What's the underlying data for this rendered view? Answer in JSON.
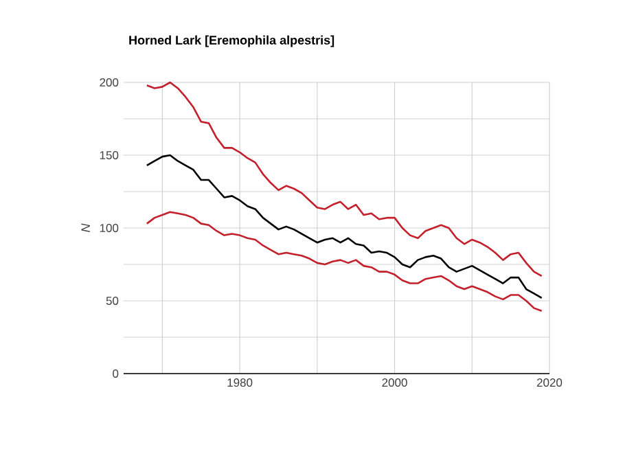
{
  "chart_data": {
    "type": "line",
    "title": "Horned Lark [Eremophila alpestris]",
    "ylabel": "N",
    "x": [
      1968,
      1969,
      1970,
      1971,
      1972,
      1973,
      1974,
      1975,
      1976,
      1977,
      1978,
      1979,
      1980,
      1981,
      1982,
      1983,
      1984,
      1985,
      1986,
      1987,
      1988,
      1989,
      1990,
      1991,
      1992,
      1993,
      1994,
      1995,
      1996,
      1997,
      1998,
      1999,
      2000,
      2001,
      2002,
      2003,
      2004,
      2005,
      2006,
      2007,
      2008,
      2009,
      2010,
      2011,
      2012,
      2013,
      2014,
      2015,
      2016,
      2017,
      2018,
      2019
    ],
    "series": [
      {
        "color": "#c4202c",
        "values": [
          198,
          196,
          197,
          200,
          196,
          190,
          183,
          173,
          172,
          162,
          155,
          155,
          152,
          148,
          145,
          137,
          131,
          126,
          129,
          127,
          124,
          119,
          114,
          113,
          116,
          118,
          113,
          116,
          109,
          110,
          106,
          107,
          107,
          100,
          95,
          93,
          98,
          100,
          102,
          100,
          93,
          89,
          92,
          90,
          87,
          83,
          78,
          82,
          83,
          76,
          70,
          67
        ]
      },
      {
        "color": "#000000",
        "values": [
          143,
          146,
          149,
          150,
          146,
          143,
          140,
          133,
          133,
          127,
          121,
          122,
          119,
          115,
          113,
          107,
          103,
          99,
          101,
          99,
          96,
          93,
          90,
          92,
          93,
          90,
          93,
          89,
          88,
          83,
          84,
          83,
          80,
          75,
          73,
          78,
          80,
          81,
          79,
          73,
          70,
          72,
          74,
          71,
          68,
          65,
          62,
          66,
          66,
          58,
          55,
          52
        ]
      },
      {
        "color": "#c4202c",
        "values": [
          103,
          107,
          109,
          111,
          110,
          109,
          107,
          103,
          102,
          98,
          95,
          96,
          95,
          93,
          92,
          88,
          85,
          82,
          83,
          82,
          81,
          79,
          76,
          75,
          77,
          78,
          76,
          78,
          74,
          73,
          70,
          70,
          68,
          64,
          62,
          62,
          65,
          66,
          67,
          64,
          60,
          58,
          60,
          58,
          56,
          53,
          51,
          54,
          54,
          50,
          45,
          43
        ]
      }
    ],
    "xlim": [
      1965,
      2020
    ],
    "xticks": [
      {
        "value": 1970,
        "label": null
      },
      1980,
      {
        "value": 1990,
        "label": null
      },
      2000,
      {
        "value": 2010,
        "label": null
      },
      2020
    ],
    "ylim": [
      0,
      200
    ],
    "yticks": [
      0,
      {
        "value": 25,
        "label": null
      },
      50,
      {
        "value": 75,
        "label": null
      },
      100,
      {
        "value": 125,
        "label": null
      },
      150,
      {
        "value": 175,
        "label": null
      },
      200
    ],
    "grid": true,
    "marker": "none",
    "line_style": "solid"
  }
}
